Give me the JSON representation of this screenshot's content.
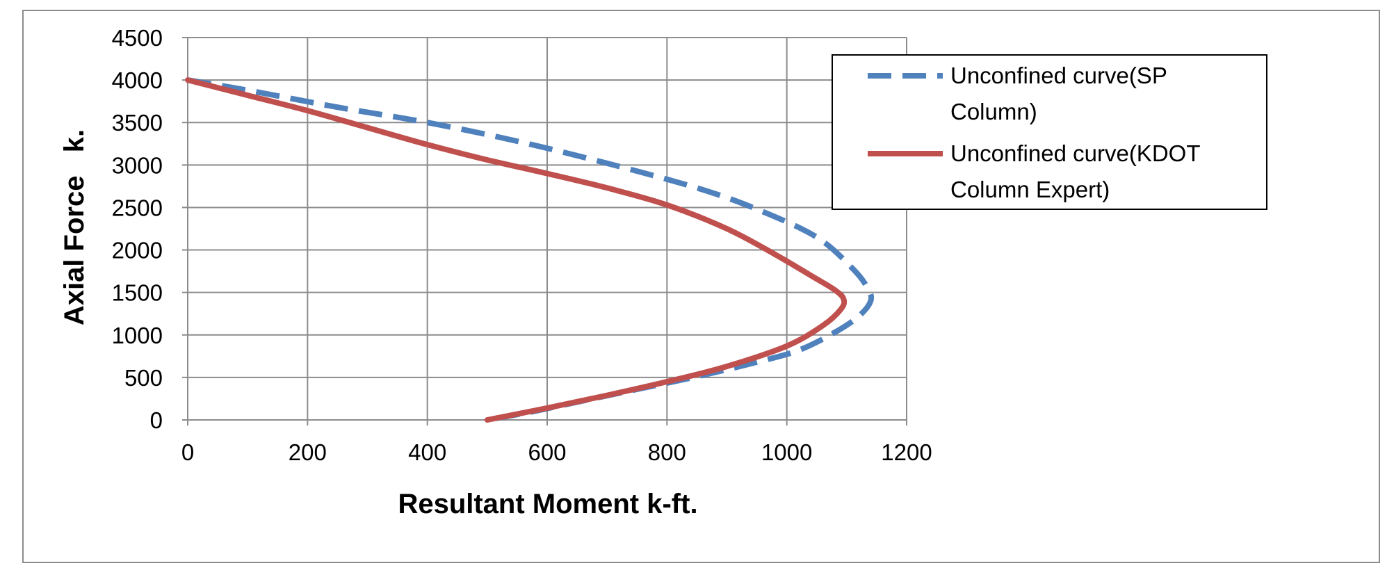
{
  "chart_data": {
    "type": "line",
    "title": "",
    "xlabel": "Resultant Moment  k-ft.",
    "ylabel": "Axial Force   k.",
    "xlim": [
      0,
      1200
    ],
    "ylim": [
      0,
      4500
    ],
    "xticks": [
      0,
      200,
      400,
      600,
      800,
      1000,
      1200
    ],
    "yticks": [
      0,
      500,
      1000,
      1500,
      2000,
      2500,
      3000,
      3500,
      4000,
      4500
    ],
    "grid": true,
    "legend_position": "top-right",
    "series": [
      {
        "name": "Unconfined curve(SP Column)",
        "color": "#4F81BD",
        "style": "dashed",
        "x": [
          0,
          100,
          250,
          400,
          550,
          700,
          850,
          950,
          1050,
          1110,
          1135,
          1140,
          1120,
          1080,
          1020,
          950,
          850,
          750,
          650,
          570,
          500
        ],
        "y": [
          4000,
          3880,
          3680,
          3500,
          3280,
          3020,
          2730,
          2480,
          2150,
          1780,
          1550,
          1400,
          1220,
          1030,
          820,
          680,
          510,
          360,
          210,
          90,
          0
        ]
      },
      {
        "name": "Unconfined curve(KDOT Column Expert)",
        "color": "#C0504D",
        "style": "solid",
        "x": [
          0,
          100,
          200,
          300,
          400,
          500,
          600,
          700,
          800,
          900,
          980,
          1040,
          1080,
          1095,
          1090,
          1060,
          1000,
          900,
          800,
          700,
          600,
          500
        ],
        "y": [
          4000,
          3820,
          3640,
          3440,
          3240,
          3060,
          2900,
          2730,
          2530,
          2250,
          1950,
          1700,
          1530,
          1420,
          1300,
          1110,
          870,
          630,
          450,
          290,
          140,
          0
        ]
      }
    ]
  }
}
